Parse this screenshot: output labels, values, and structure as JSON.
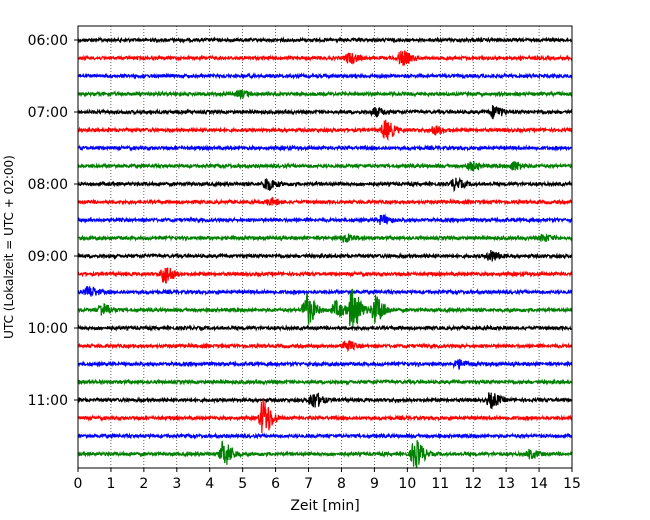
{
  "chart_data": {
    "type": "line",
    "title": "",
    "xlabel": "Zeit  [min]",
    "ylabel": "UTC (Lokalzeit = UTC + 02:00)",
    "xlim": [
      0,
      15
    ],
    "x_ticks": [
      "0",
      "1",
      "2",
      "3",
      "4",
      "5",
      "6",
      "7",
      "8",
      "9",
      "10",
      "11",
      "12",
      "13",
      "14",
      "15"
    ],
    "y_tick_labels": [
      "06:00",
      "07:00",
      "08:00",
      "09:00",
      "10:00",
      "11:00"
    ],
    "grid": "vertical dotted",
    "legend": "none",
    "line_colors": [
      "#000000",
      "#ff0000",
      "#0000ff",
      "#008000"
    ],
    "traces": [
      {
        "start": "06:00",
        "color": "#000000",
        "events": []
      },
      {
        "start": "06:15",
        "color": "#ff0000",
        "events": [
          {
            "t": 8.2,
            "amp": 5
          },
          {
            "t": 9.8,
            "amp": 7
          }
        ]
      },
      {
        "start": "06:30",
        "color": "#0000ff",
        "events": []
      },
      {
        "start": "06:45",
        "color": "#008000",
        "events": [
          {
            "t": 4.9,
            "amp": 3
          }
        ]
      },
      {
        "start": "07:00",
        "color": "#000000",
        "events": [
          {
            "t": 9.0,
            "amp": 4
          },
          {
            "t": 12.6,
            "amp": 6
          }
        ]
      },
      {
        "start": "07:15",
        "color": "#ff0000",
        "events": [
          {
            "t": 9.3,
            "amp": 9
          },
          {
            "t": 10.8,
            "amp": 4
          }
        ]
      },
      {
        "start": "07:30",
        "color": "#0000ff",
        "events": []
      },
      {
        "start": "07:45",
        "color": "#008000",
        "events": [
          {
            "t": 11.9,
            "amp": 4
          },
          {
            "t": 13.2,
            "amp": 4
          }
        ]
      },
      {
        "start": "08:00",
        "color": "#000000",
        "events": [
          {
            "t": 5.7,
            "amp": 6
          },
          {
            "t": 11.4,
            "amp": 5
          }
        ]
      },
      {
        "start": "08:15",
        "color": "#ff0000",
        "events": [
          {
            "t": 5.8,
            "amp": 3
          }
        ]
      },
      {
        "start": "08:30",
        "color": "#0000ff",
        "events": [
          {
            "t": 9.2,
            "amp": 4
          }
        ]
      },
      {
        "start": "08:45",
        "color": "#008000",
        "events": [
          {
            "t": 8.1,
            "amp": 4
          },
          {
            "t": 14.1,
            "amp": 3
          }
        ]
      },
      {
        "start": "09:00",
        "color": "#000000",
        "events": [
          {
            "t": 12.5,
            "amp": 5
          }
        ]
      },
      {
        "start": "09:15",
        "color": "#ff0000",
        "events": [
          {
            "t": 2.6,
            "amp": 9
          }
        ]
      },
      {
        "start": "09:30",
        "color": "#0000ff",
        "events": [
          {
            "t": 0.3,
            "amp": 5
          }
        ]
      },
      {
        "start": "09:45",
        "color": "#008000",
        "events": [
          {
            "t": 0.7,
            "amp": 6
          },
          {
            "t": 6.9,
            "amp": 16
          },
          {
            "t": 7.8,
            "amp": 8
          },
          {
            "t": 8.3,
            "amp": 20
          },
          {
            "t": 9.0,
            "amp": 14
          }
        ]
      },
      {
        "start": "10:00",
        "color": "#000000",
        "events": []
      },
      {
        "start": "10:15",
        "color": "#ff0000",
        "events": [
          {
            "t": 8.1,
            "amp": 5
          }
        ]
      },
      {
        "start": "10:30",
        "color": "#0000ff",
        "events": [
          {
            "t": 11.5,
            "amp": 4
          }
        ]
      },
      {
        "start": "10:45",
        "color": "#008000",
        "events": []
      },
      {
        "start": "11:00",
        "color": "#000000",
        "events": [
          {
            "t": 7.1,
            "amp": 8
          },
          {
            "t": 12.5,
            "amp": 7
          }
        ]
      },
      {
        "start": "11:15",
        "color": "#ff0000",
        "events": [
          {
            "t": 5.6,
            "amp": 18
          }
        ]
      },
      {
        "start": "11:30",
        "color": "#0000ff",
        "events": []
      },
      {
        "start": "11:45",
        "color": "#008000",
        "events": [
          {
            "t": 4.4,
            "amp": 12
          },
          {
            "t": 10.2,
            "amp": 14
          },
          {
            "t": 13.7,
            "amp": 4
          }
        ]
      }
    ]
  }
}
